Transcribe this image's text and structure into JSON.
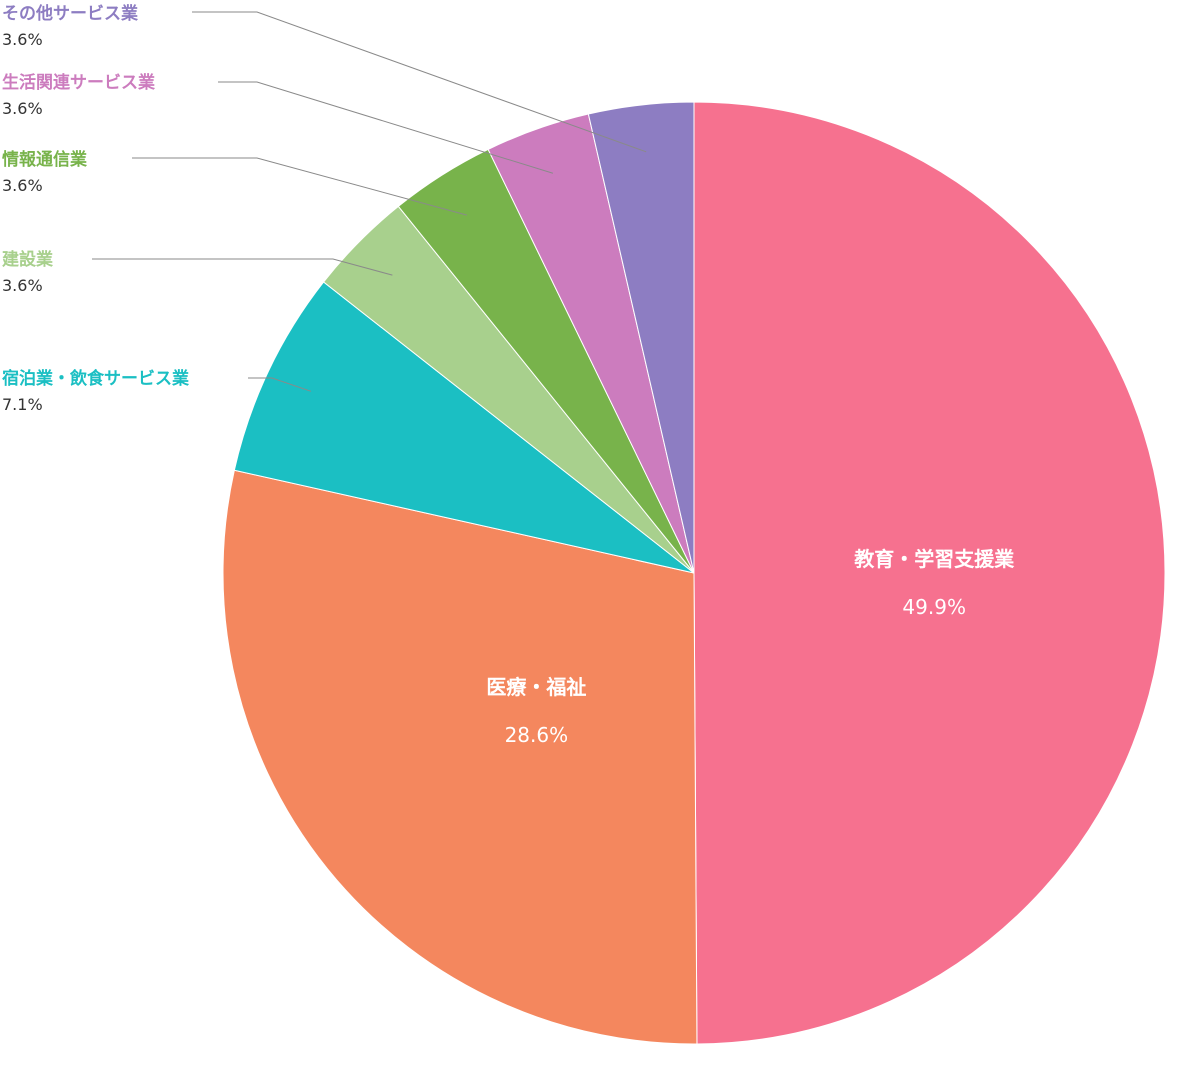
{
  "chart_data": {
    "type": "pie",
    "title": "",
    "start_angle_deg": 0,
    "direction": "clockwise",
    "slices": [
      {
        "label": "教育・学習支援業",
        "value_label": "49.9%",
        "value": 49.9,
        "color": "#f6718f",
        "label_style": "inside"
      },
      {
        "label": "医療・福祉",
        "value_label": "28.6%",
        "value": 28.6,
        "color": "#f4875e",
        "label_style": "inside"
      },
      {
        "label": "宿泊業・飲食サービス業",
        "value_label": "7.1%",
        "value": 7.1,
        "color": "#1bbfc3",
        "label_style": "outside"
      },
      {
        "label": "建設業",
        "value_label": "3.6%",
        "value": 3.6,
        "color": "#a8d08d",
        "label_style": "outside"
      },
      {
        "label": "情報通信業",
        "value_label": "3.6%",
        "value": 3.6,
        "color": "#78b34b",
        "label_style": "outside"
      },
      {
        "label": "生活関連サービス業",
        "value_label": "3.6%",
        "value": 3.6,
        "color": "#cc7cbe",
        "label_style": "outside"
      },
      {
        "label": "その他サービス業",
        "value_label": "3.6%",
        "value": 3.6,
        "color": "#8d7dc2",
        "label_style": "outside"
      }
    ]
  }
}
